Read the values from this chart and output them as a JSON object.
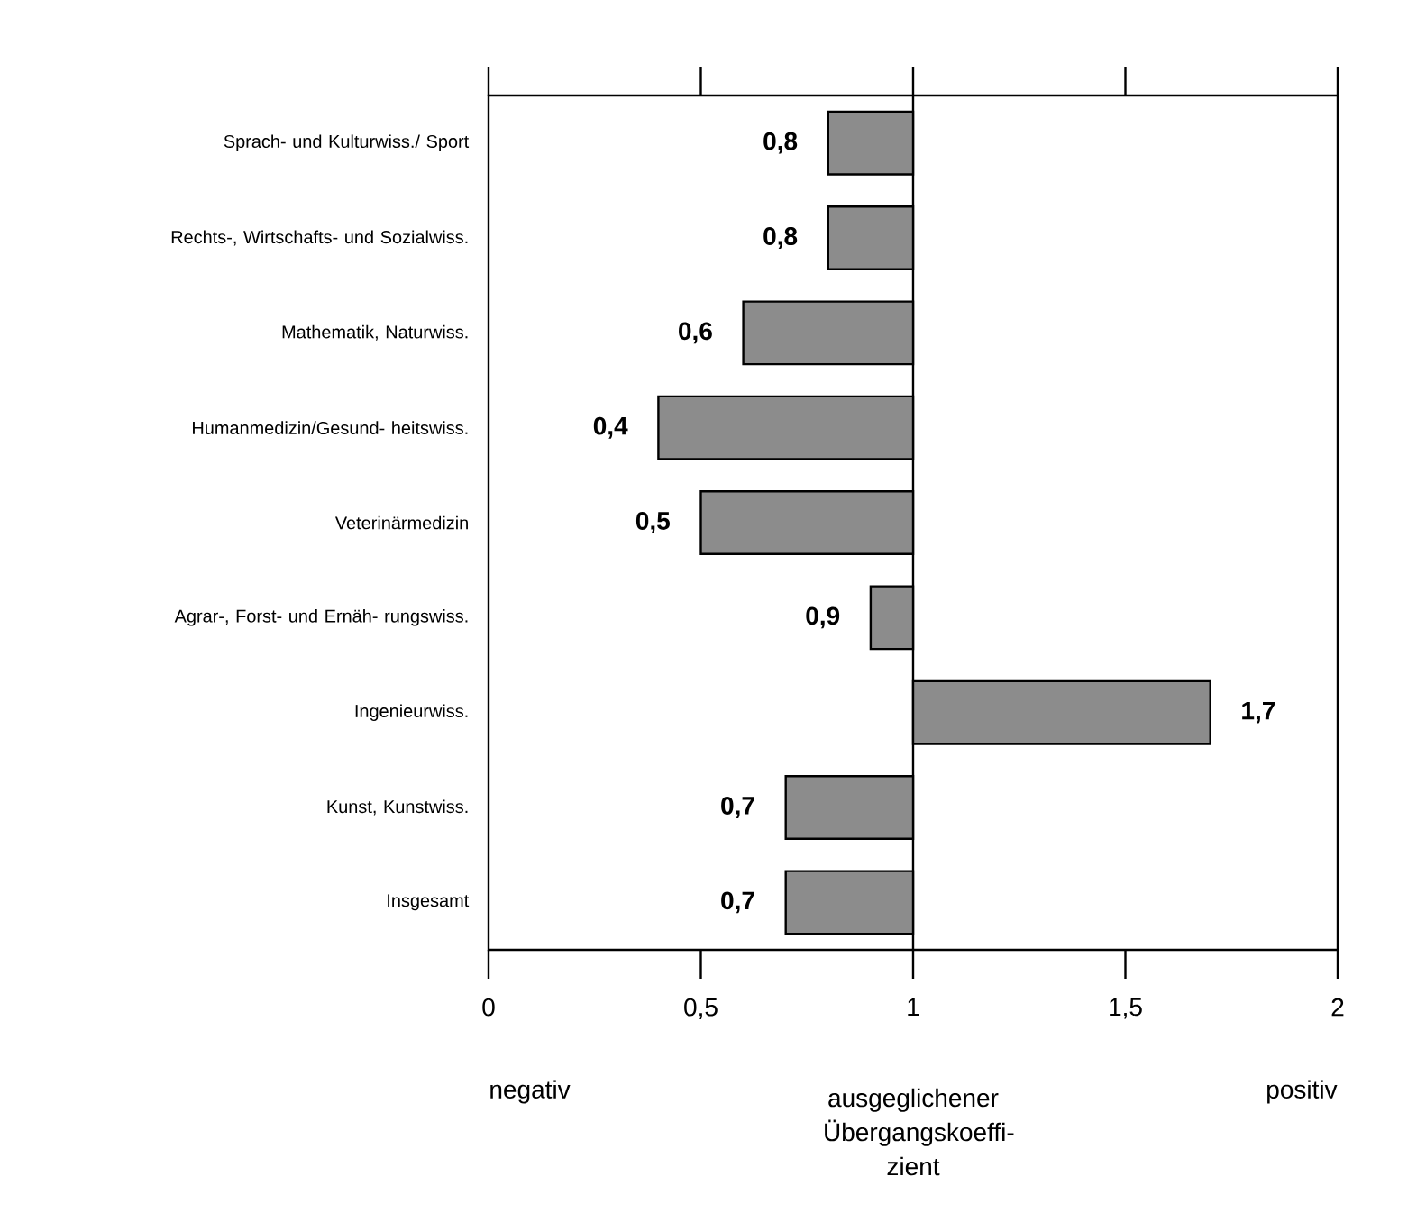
{
  "chart_data": {
    "type": "bar",
    "orientation": "horizontal",
    "categories": [
      "Sprach- und Kulturwiss./ Sport",
      "Rechts-, Wirtschafts- und Sozialwiss.",
      "Mathematik, Naturwiss.",
      "Humanmedizin/Gesund- heitswiss.",
      "Veterinärmedizin",
      "Agrar-, Forst- und Ernäh- rungswiss.",
      "Ingenieurwiss.",
      "Kunst, Kunstwiss.",
      "Insgesamt"
    ],
    "base": [
      1,
      1,
      1,
      1,
      1,
      1,
      1,
      1,
      1
    ],
    "values": [
      -0.2,
      -0.2,
      -0.4,
      -0.6,
      -0.5,
      -0.1,
      0.7,
      -0.3,
      -0.3
    ],
    "value_labels": [
      "0,8",
      "0,8",
      "0,6",
      "0,4",
      "0,5",
      "0,9",
      "1,7",
      "0,7",
      "0,7"
    ],
    "color": "#8c8c8c",
    "xlim": [
      0,
      2
    ],
    "xticks": [
      0,
      {
        "value": 0.5,
        "label": "0,5"
      },
      1,
      {
        "value": 1.5,
        "label": "1,5"
      },
      2
    ],
    "ref_lines": [
      {
        "axis": "x",
        "value": 1,
        "label": "ausgeglichener Übergangskoeffi- zient"
      }
    ],
    "annotations": [
      "negativ",
      "positiv"
    ]
  }
}
